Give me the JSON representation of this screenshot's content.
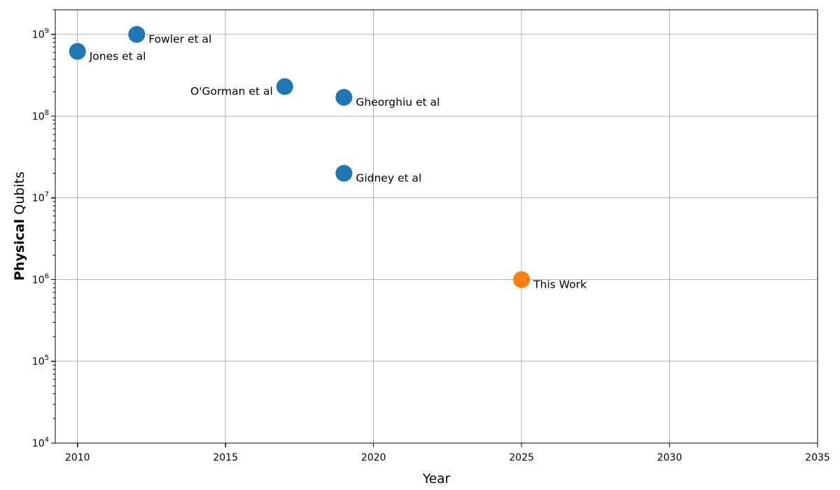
{
  "chart_data": {
    "type": "scatter",
    "title": "",
    "xlabel": "Year",
    "ylabel": "Physical Qubits",
    "ylabel_bold_part": "Physical",
    "ylabel_regular_part": "Qubits",
    "yscale": "log",
    "xlim": [
      2009.25,
      2035
    ],
    "ylim": [
      10000,
      2000000000
    ],
    "x_ticks": [
      2010,
      2015,
      2020,
      2025,
      2030,
      2035
    ],
    "y_tick_exponents": [
      4,
      5,
      6,
      7,
      8,
      9
    ],
    "y_tick_labels": [
      "10⁴",
      "10⁵",
      "10⁶",
      "10⁷",
      "10⁸",
      "10⁹"
    ],
    "grid": true,
    "grid_color": "#b0b0b0",
    "axis_color": "#000000",
    "text_color": "#000000",
    "background_color": "#ffffff",
    "marker_diameter_px": 24,
    "legend": null,
    "points": [
      {
        "label": "Jones et al",
        "x": 2010,
        "y": 620000000,
        "color": "#1f77b4",
        "label_side": "right"
      },
      {
        "label": "Fowler et al",
        "x": 2012,
        "y": 1000000000,
        "color": "#1f77b4",
        "label_side": "right"
      },
      {
        "label": "O'Gorman et al",
        "x": 2017,
        "y": 230000000,
        "color": "#1f77b4",
        "label_side": "left"
      },
      {
        "label": "Gheorghiu et al",
        "x": 2019,
        "y": 170000000,
        "color": "#1f77b4",
        "label_side": "right"
      },
      {
        "label": "Gidney et al",
        "x": 2019,
        "y": 20000000,
        "color": "#1f77b4",
        "label_side": "right"
      },
      {
        "label": "This Work",
        "x": 2025,
        "y": 1000000,
        "color": "#ff7f0e",
        "label_side": "right"
      }
    ]
  }
}
